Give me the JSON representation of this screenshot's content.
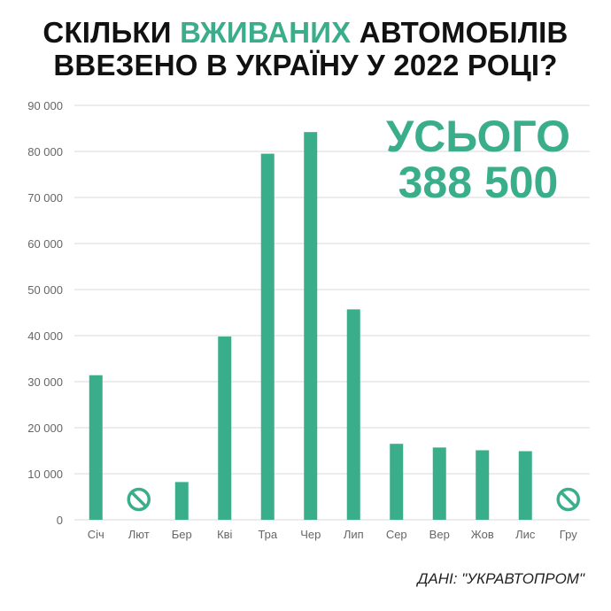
{
  "title": {
    "part1": "СКІЛЬКИ ",
    "accent": "ВЖИВАНИХ",
    "part2": " АВТОМОБІЛІВ",
    "line2": "ВВЕЗЕНО В УКРАЇНУ У 2022 РОЦІ?"
  },
  "total": {
    "line1": "УСЬОГО",
    "line2": "388 500"
  },
  "source": "ДАНІ: \"УКРАВТОПРОМ\"",
  "colors": {
    "bar": "#3aae8a",
    "accent": "#3aae8a",
    "grid": "#d9d9d9"
  },
  "chart_data": {
    "type": "bar",
    "categories": [
      "Січ",
      "Лют",
      "Бер",
      "Кві",
      "Тра",
      "Чер",
      "Лип",
      "Сер",
      "Вер",
      "Жов",
      "Лис",
      "Гру"
    ],
    "values": [
      31400,
      null,
      8200,
      39800,
      79500,
      84200,
      45700,
      16500,
      15700,
      15100,
      14900,
      null
    ],
    "no_data_marker": "no-entry-icon",
    "ylim": [
      0,
      90000
    ],
    "yticks": [
      0,
      10000,
      20000,
      30000,
      40000,
      50000,
      60000,
      70000,
      80000,
      90000
    ],
    "ytick_labels": [
      "0",
      "10 000",
      "20 000",
      "30 000",
      "40 000",
      "50 000",
      "60 000",
      "70 000",
      "80 000",
      "90 000"
    ],
    "grid": true
  }
}
